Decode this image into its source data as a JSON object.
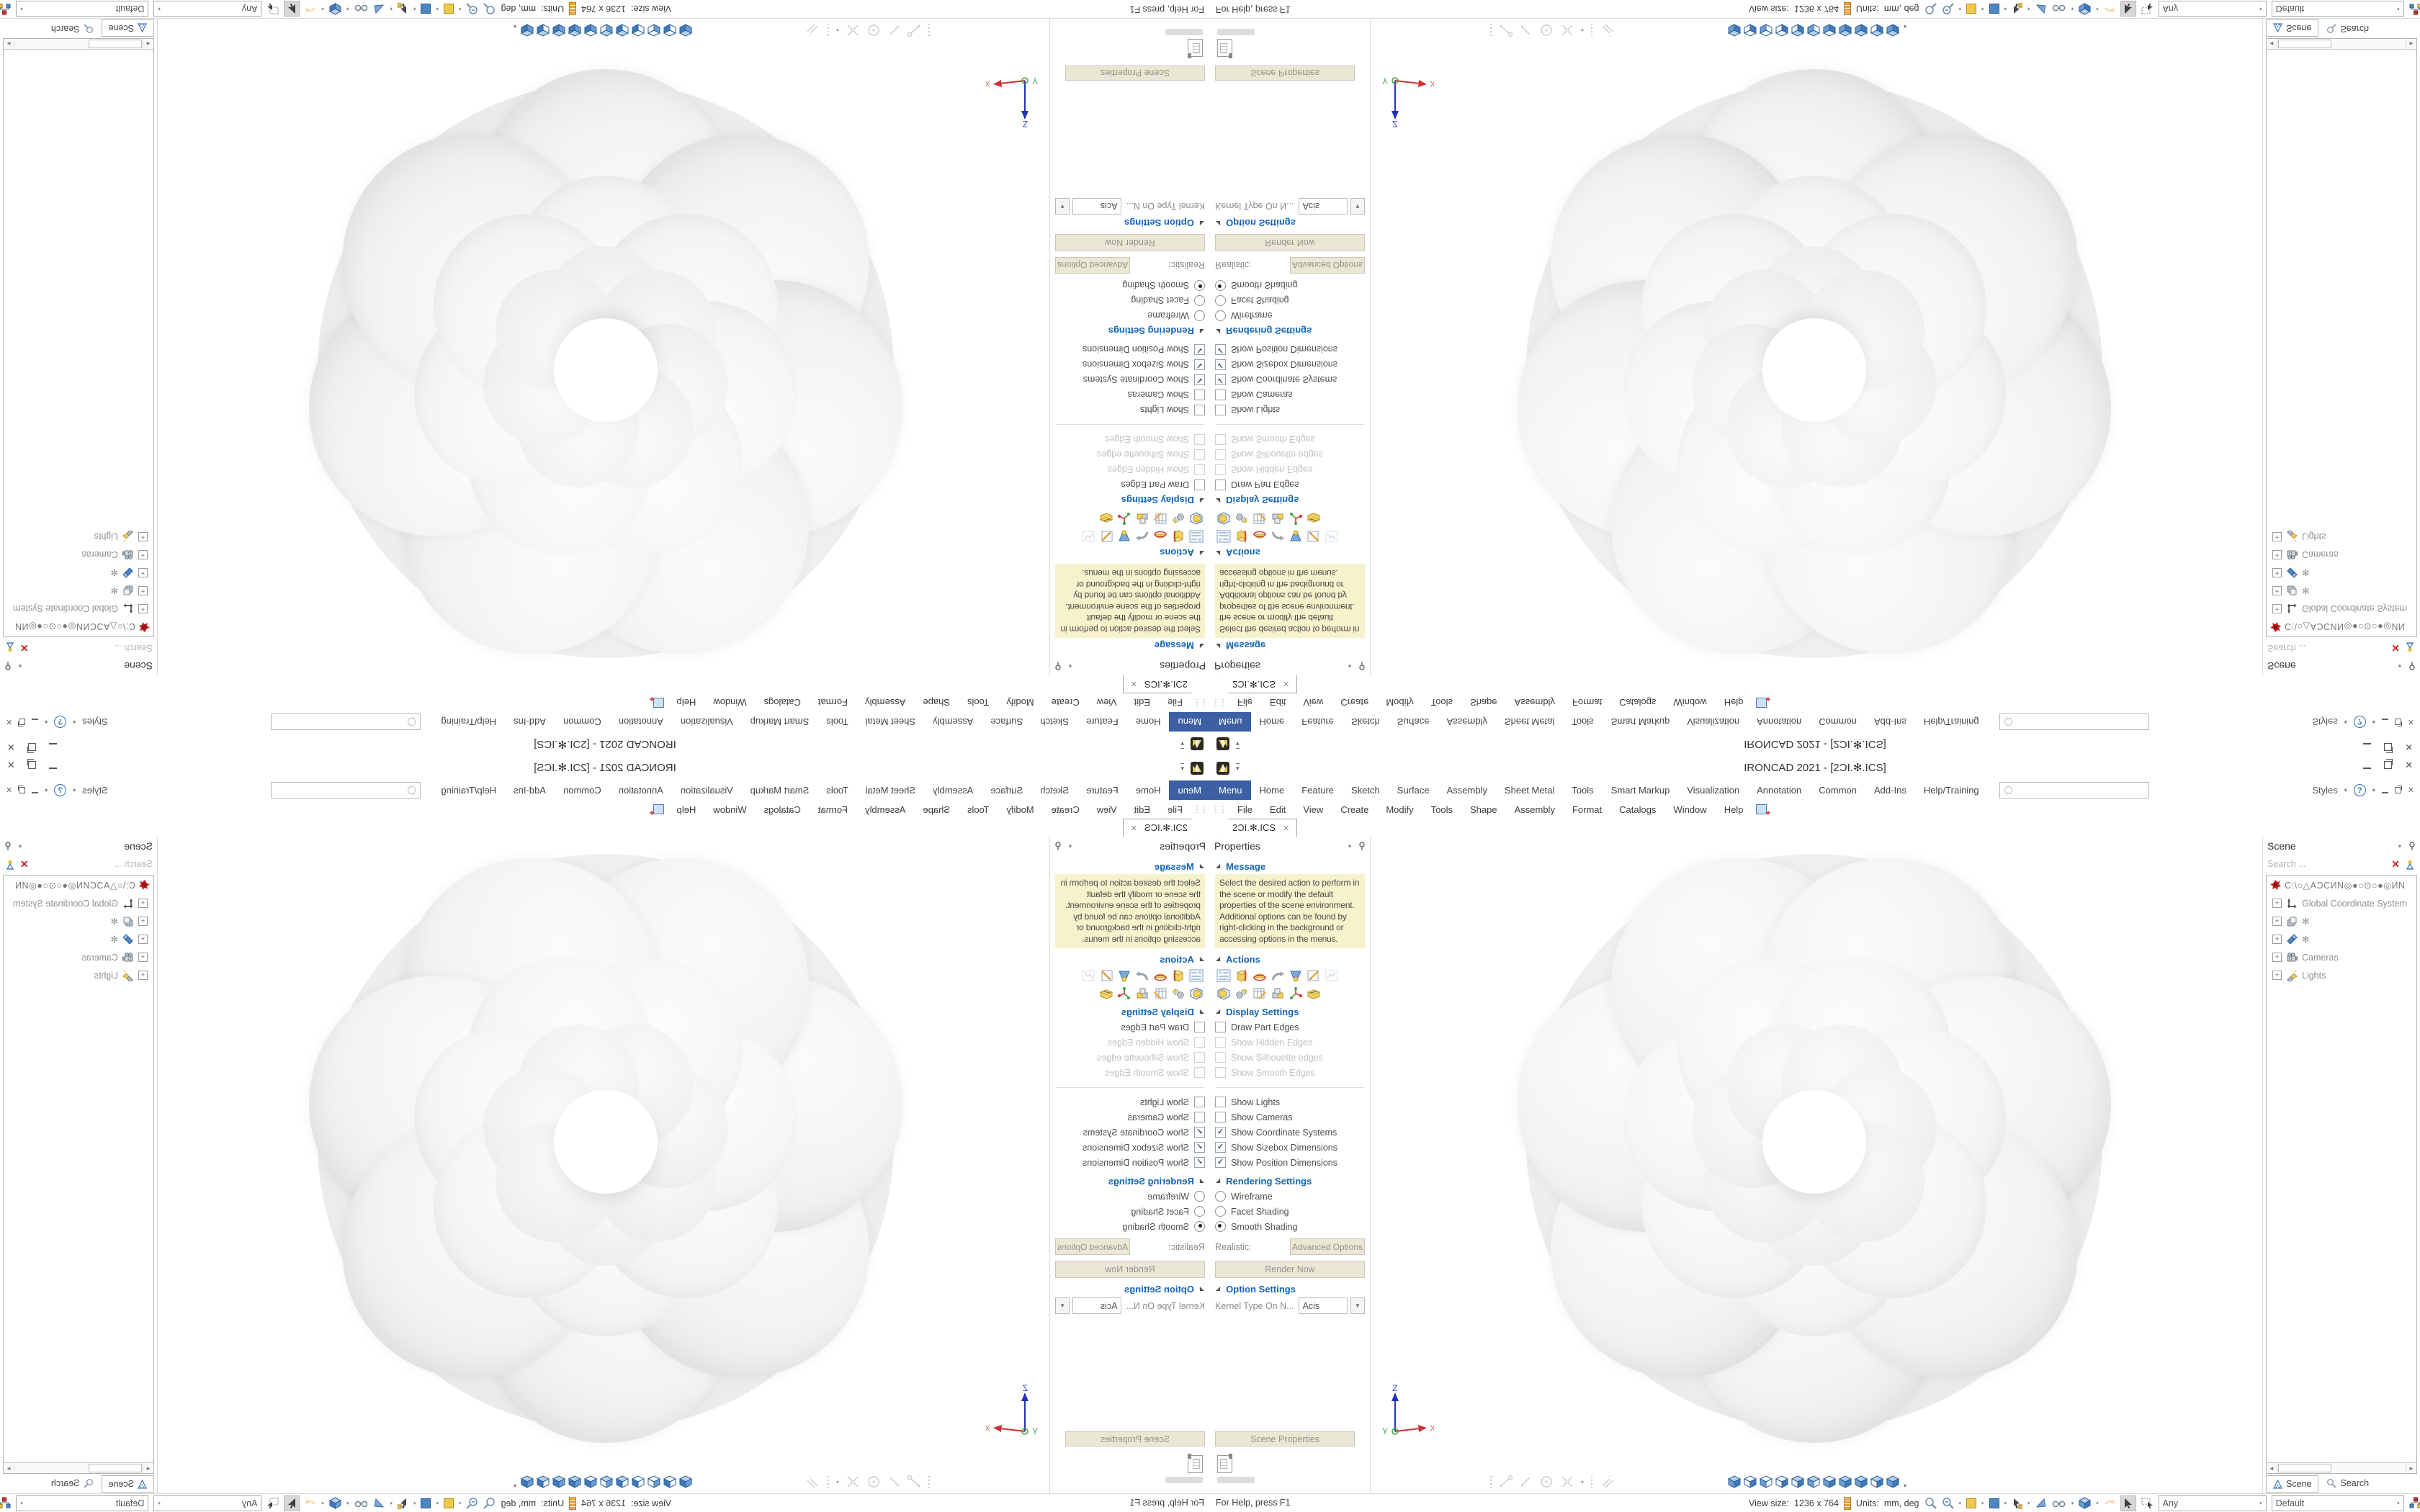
{
  "app": {
    "title": "IRONCAD 2021 - [2ƆI.✻.ICS]"
  },
  "ribbon": {
    "tabs": [
      "Menu",
      "Home",
      "Feature",
      "Sketch",
      "Surface",
      "Assembly",
      "Sheet Metal",
      "Tools",
      "Smart Markup",
      "Visualization",
      "Annotation",
      "Common",
      "Add-Ins",
      "Help/Training"
    ],
    "active_tab": "Menu",
    "styles_label": "Styles",
    "help_glyph": "?"
  },
  "menubar": {
    "items": [
      "File",
      "Edit",
      "View",
      "Create",
      "Modify",
      "Tools",
      "Shape",
      "Assembly",
      "Format",
      "Catalogs",
      "Window",
      "Help"
    ]
  },
  "document": {
    "tab_label": "2ƆI.✻.ICS"
  },
  "props": {
    "header": "Properties",
    "message": {
      "title": "Message",
      "text": "Select the desired action to perform in the scene or modify the default properties of the scene environment. Additional options can be found by right-clicking in the background or accessing options in the menus."
    },
    "actions": {
      "title": "Actions",
      "row1_icons": [
        "scene-list",
        "extrude",
        "revolve",
        "sweep",
        "loft",
        "edit-sketch",
        "drawing"
      ],
      "row2_icons": [
        "scene-box",
        "settings-gears",
        "table-edit",
        "blocks",
        "triad",
        "export-box"
      ]
    },
    "display": {
      "title": "Display Settings",
      "items": [
        {
          "label": "Draw Part Edges",
          "checked": false,
          "disabled": false
        },
        {
          "label": "Show Hidden Edges",
          "checked": false,
          "disabled": true
        },
        {
          "label": "Show Silhouette edges",
          "checked": false,
          "disabled": true
        },
        {
          "label": "Show Smooth Edges",
          "checked": false,
          "disabled": true
        },
        {
          "label": "Show Lights",
          "checked": false,
          "disabled": false
        },
        {
          "label": "Show Cameras",
          "checked": false,
          "disabled": false
        },
        {
          "label": "Show Coordinate Systems",
          "checked": true,
          "disabled": false
        },
        {
          "label": "Show Sizebox Dimensions",
          "checked": true,
          "disabled": false
        },
        {
          "label": "Show Position Dimensions",
          "checked": true,
          "disabled": false
        }
      ]
    },
    "rendering": {
      "title": "Rendering Settings",
      "options": [
        {
          "label": "Wireframe",
          "selected": false
        },
        {
          "label": "Facet Shading",
          "selected": false
        },
        {
          "label": "Smooth Shading",
          "selected": true
        }
      ],
      "realistic_label": "Realistic:",
      "advanced_button": "Advanced Options",
      "render_button": "Render Now"
    },
    "option_settings": {
      "title": "Option Settings",
      "kernel_label": "Kernel Type On N...",
      "kernel_value": "Acis"
    },
    "bottom_button": "Scene Properties"
  },
  "scene": {
    "header": "Scene",
    "search_placeholder": "Search ...",
    "root_label": "C:\\○△AƆCИN◎●○⊙○●◎ИN",
    "items": [
      {
        "label": "Global Coordinate System"
      },
      {
        "label": "✻"
      },
      {
        "label": "✻"
      },
      {
        "label": "Cameras"
      },
      {
        "label": "Lights"
      }
    ],
    "tabs": [
      {
        "label": "Scene"
      },
      {
        "label": "Search"
      }
    ]
  },
  "viewport": {
    "model": "smooth-shaded 7-lobed blob torus part",
    "triad_axes": {
      "x": "X",
      "y": "Y",
      "z": "Z"
    }
  },
  "status": {
    "help": "For Help, press F1",
    "view_size_label": "View size:",
    "view_size_value": "1236 x 764",
    "units_label": "Units:",
    "units_value": "mm, deg",
    "filter_value": "Any",
    "style_value": "Default"
  },
  "glyphs": {
    "caret": "▾",
    "small_caret": "▼",
    "section_tri": "◢",
    "close": "✕",
    "check": "✓",
    "menu_handle": "⋮⋮",
    "expander_plus": "+",
    "left_arrow": "◄",
    "right_arrow": "►",
    "clear_x": "✕"
  },
  "colors": {
    "accent_tab_blue": "#3d5fa3",
    "section_header_blue": "#1465b4",
    "message_bg": "#f6f2cc",
    "button_beige": "#ebe7d6",
    "cube_blue": "#4d85c2",
    "clear_red": "#cc2222"
  }
}
